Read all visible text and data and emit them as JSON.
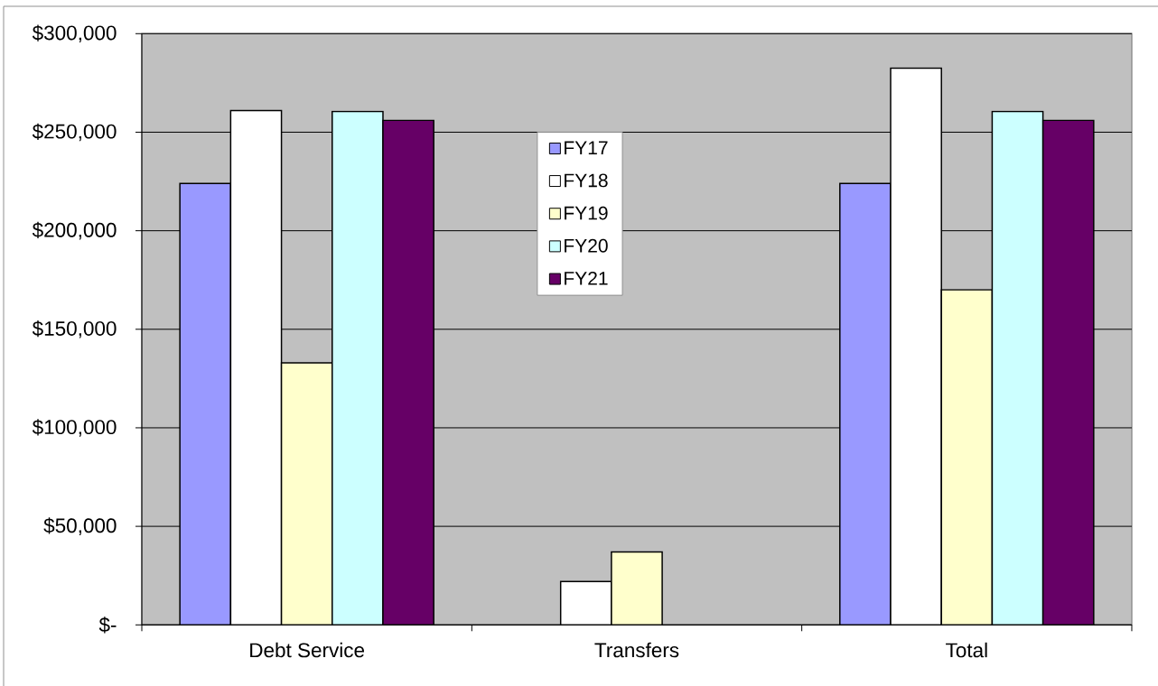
{
  "chart_data": {
    "type": "bar",
    "categories": [
      "Debt Service",
      "Transfers",
      "Total"
    ],
    "series": [
      {
        "name": "FY17",
        "color": "#9999ff",
        "values": [
          224000,
          null,
          224000
        ]
      },
      {
        "name": "FY18",
        "color": "#ffffff",
        "values": [
          261000,
          22000,
          282500
        ]
      },
      {
        "name": "FY19",
        "color": "#ffffcc",
        "values": [
          133000,
          37000,
          170000
        ]
      },
      {
        "name": "FY20",
        "color": "#ccffff",
        "values": [
          260500,
          null,
          260500
        ]
      },
      {
        "name": "FY21",
        "color": "#660066",
        "values": [
          256000,
          null,
          256000
        ]
      }
    ],
    "ylim": [
      0,
      300000
    ],
    "yticks": [
      {
        "value": 0,
        "label": "$-"
      },
      {
        "value": 50000,
        "label": "$50,000"
      },
      {
        "value": 100000,
        "label": "$100,000"
      },
      {
        "value": 150000,
        "label": "$150,000"
      },
      {
        "value": 200000,
        "label": "$200,000"
      },
      {
        "value": 250000,
        "label": "$250,000"
      },
      {
        "value": 300000,
        "label": "$300,000"
      }
    ],
    "grid": "y",
    "legend": "top"
  }
}
